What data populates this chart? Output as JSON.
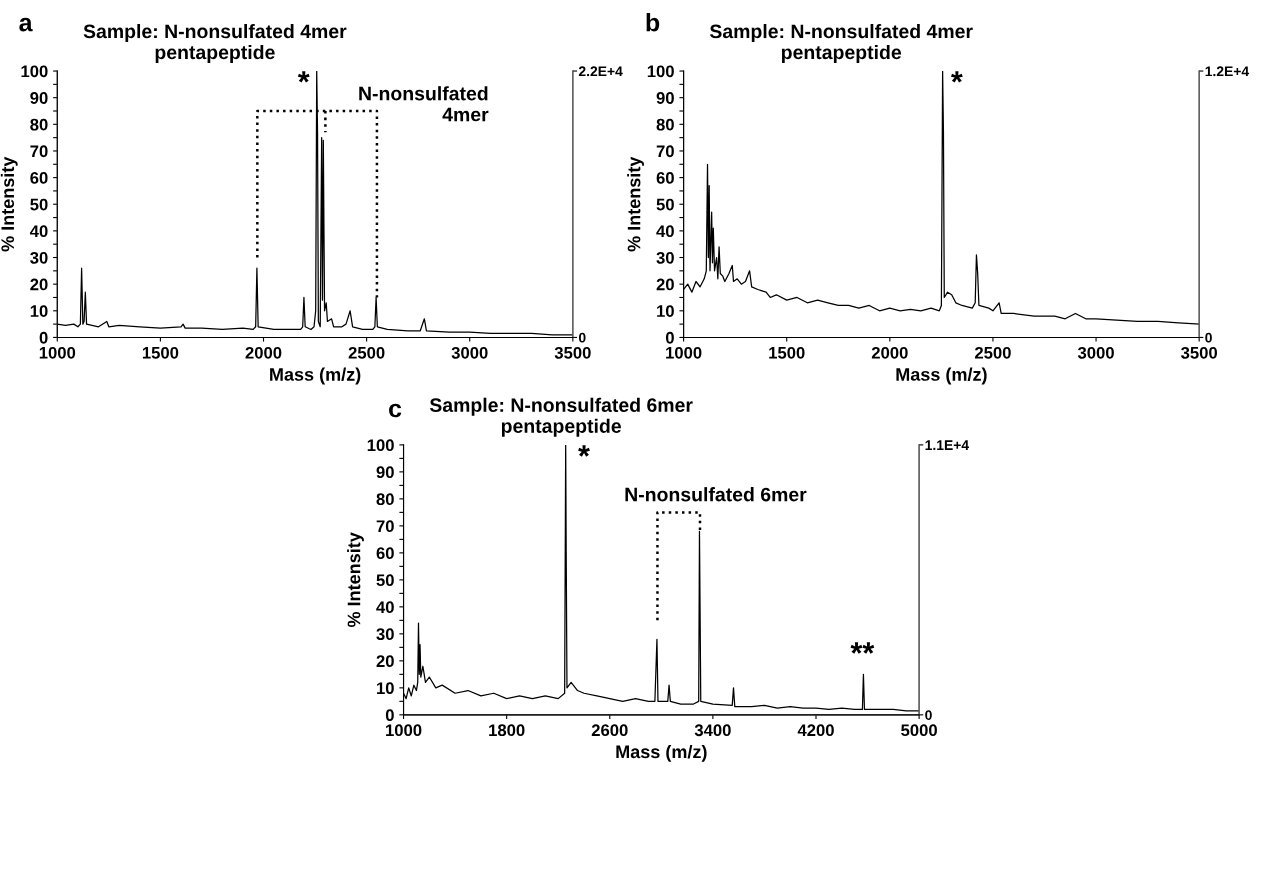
{
  "chart_data": [
    {
      "type": "line",
      "title": "a",
      "subtitle": "Sample: N-nonsulfated 4mer\npentapeptide",
      "xlabel": "Mass (m/z)",
      "ylabel": "% Intensity",
      "xlim": [
        1000,
        3500
      ],
      "xticks": [
        1000,
        1500,
        2000,
        2500,
        3000,
        3500
      ],
      "ylim": [
        0,
        100
      ],
      "yticks": [
        0,
        {
          "value": 5,
          "label": null
        },
        10,
        {
          "value": 15,
          "label": null
        },
        20,
        {
          "value": 25,
          "label": null
        },
        30,
        {
          "value": 35,
          "label": null
        },
        40,
        {
          "value": 45,
          "label": null
        },
        50,
        {
          "value": 55,
          "label": null
        },
        60,
        {
          "value": 65,
          "label": null
        },
        70,
        {
          "value": 75,
          "label": null
        },
        80,
        {
          "value": 85,
          "label": null
        },
        90,
        {
          "value": 95,
          "label": null
        },
        100
      ],
      "y2lim": [
        0,
        22000
      ],
      "y2ticks": [
        0,
        {
          "value": 22000,
          "label": "2.2E+4"
        }
      ],
      "marker": "none",
      "grid": false,
      "series": [
        {
          "color": "#000000",
          "line_style": "solid",
          "x": [
            1000,
            1040,
            1080,
            1100,
            1112,
            1118,
            1124,
            1130,
            1136,
            1142,
            1200,
            1240,
            1250,
            1300,
            1400,
            1500,
            1600,
            1610,
            1620,
            1700,
            1800,
            1900,
            1950,
            1962,
            1968,
            1974,
            2050,
            2100,
            2150,
            2180,
            2190,
            2196,
            2202,
            2230,
            2245,
            2253,
            2258,
            2262,
            2266,
            2275,
            2282,
            2286,
            2290,
            2296,
            2304,
            2310,
            2330,
            2340,
            2380,
            2400,
            2420,
            2426,
            2432,
            2480,
            2530,
            2540,
            2546,
            2552,
            2600,
            2700,
            2760,
            2780,
            2790,
            2900,
            3000,
            3100,
            3200,
            3300,
            3400,
            3500
          ],
          "values": [
            5,
            4.5,
            5,
            4,
            5,
            26,
            5,
            6,
            17,
            5,
            4,
            6,
            4,
            4.5,
            4,
            3.5,
            4,
            5,
            3.5,
            3.5,
            3,
            3.5,
            3,
            4,
            26,
            4,
            3,
            3,
            3,
            3,
            4,
            15,
            4,
            3,
            4,
            10,
            100,
            77,
            6,
            4,
            75,
            14,
            74,
            10,
            13,
            6,
            7,
            4,
            4,
            5,
            10,
            7,
            4,
            3,
            3,
            4,
            15,
            4,
            3,
            2.5,
            2.5,
            7,
            2.5,
            2,
            2,
            1.5,
            1.5,
            1.5,
            1,
            1
          ]
        },
        {
          "color": "#000000",
          "line_style": "dotted",
          "x": [
            1970,
            1970,
            2550,
            2550,
            null,
            2300,
            2300
          ],
          "values": [
            30,
            85,
            85,
            15,
            null,
            85,
            77
          ]
        }
      ],
      "annotations": [
        "*",
        "N-nonsulfated\n4mer"
      ]
    },
    {
      "type": "line",
      "title": "b",
      "subtitle": "Sample: N-nonsulfated 4mer\npentapeptide",
      "xlabel": "Mass (m/z)",
      "ylabel": "% Intensity",
      "xlim": [
        1000,
        3500
      ],
      "xticks": [
        1000,
        1500,
        2000,
        2500,
        3000,
        3500
      ],
      "ylim": [
        0,
        100
      ],
      "yticks": [
        0,
        {
          "value": 5,
          "label": null
        },
        10,
        {
          "value": 15,
          "label": null
        },
        20,
        {
          "value": 25,
          "label": null
        },
        30,
        {
          "value": 35,
          "label": null
        },
        40,
        {
          "value": 45,
          "label": null
        },
        50,
        {
          "value": 55,
          "label": null
        },
        60,
        {
          "value": 65,
          "label": null
        },
        70,
        {
          "value": 75,
          "label": null
        },
        80,
        {
          "value": 85,
          "label": null
        },
        90,
        {
          "value": 95,
          "label": null
        },
        100
      ],
      "y2lim": [
        0,
        12000
      ],
      "y2ticks": [
        0,
        {
          "value": 12000,
          "label": "1.2E+4"
        }
      ],
      "marker": "none",
      "grid": false,
      "series": [
        {
          "color": "#000000",
          "line_style": "solid",
          "x": [
            1000,
            1020,
            1040,
            1060,
            1080,
            1100,
            1110,
            1116,
            1120,
            1124,
            1128,
            1136,
            1140,
            1144,
            1150,
            1160,
            1166,
            1172,
            1178,
            1190,
            1200,
            1220,
            1236,
            1242,
            1260,
            1280,
            1300,
            1320,
            1330,
            1360,
            1400,
            1420,
            1450,
            1500,
            1550,
            1600,
            1650,
            1700,
            1750,
            1800,
            1850,
            1900,
            1950,
            2000,
            2050,
            2100,
            2150,
            2200,
            2240,
            2250,
            2256,
            2260,
            2264,
            2280,
            2300,
            2320,
            2350,
            2400,
            2414,
            2420,
            2426,
            2432,
            2480,
            2500,
            2530,
            2540,
            2600,
            2700,
            2800,
            2850,
            2900,
            2950,
            3000,
            3100,
            3200,
            3300,
            3400,
            3500
          ],
          "values": [
            18,
            20,
            17,
            21,
            19,
            22,
            25,
            65,
            30,
            57,
            25,
            47,
            28,
            41,
            25,
            30,
            22,
            34,
            24,
            23,
            21,
            24,
            27,
            21,
            22,
            20,
            21,
            25,
            19,
            18,
            17,
            15,
            16,
            14,
            15,
            13,
            14,
            13,
            12,
            12,
            11,
            12,
            10,
            11,
            10,
            10.5,
            10,
            11,
            10,
            12,
            100,
            77,
            15,
            17,
            16,
            13,
            12,
            11,
            13,
            31,
            24,
            12,
            11,
            10,
            13,
            9,
            9,
            8,
            8,
            7,
            9,
            7,
            7,
            6.5,
            6,
            6,
            5.5,
            5
          ]
        }
      ],
      "annotations": [
        "*"
      ]
    },
    {
      "type": "line",
      "title": "c",
      "subtitle": "Sample: N-nonsulfated 6mer\npentapeptide",
      "xlabel": "Mass (m/z)",
      "ylabel": "% Intensity",
      "xlim": [
        1000,
        5000
      ],
      "xticks": [
        1000,
        1800,
        2600,
        3400,
        4200,
        5000
      ],
      "ylim": [
        0,
        100
      ],
      "yticks": [
        0,
        {
          "value": 5,
          "label": null
        },
        10,
        {
          "value": 15,
          "label": null
        },
        20,
        {
          "value": 25,
          "label": null
        },
        30,
        {
          "value": 35,
          "label": null
        },
        40,
        {
          "value": 45,
          "label": null
        },
        50,
        {
          "value": 55,
          "label": null
        },
        60,
        {
          "value": 65,
          "label": null
        },
        70,
        {
          "value": 75,
          "label": null
        },
        80,
        {
          "value": 85,
          "label": null
        },
        90,
        {
          "value": 95,
          "label": null
        },
        100
      ],
      "y2lim": [
        0,
        11000
      ],
      "y2ticks": [
        0,
        {
          "value": 11000,
          "label": "1.1E+4"
        }
      ],
      "marker": "none",
      "grid": false,
      "series": [
        {
          "color": "#000000",
          "line_style": "solid",
          "x": [
            1000,
            1020,
            1040,
            1060,
            1080,
            1100,
            1110,
            1116,
            1122,
            1128,
            1134,
            1150,
            1170,
            1200,
            1250,
            1300,
            1400,
            1500,
            1600,
            1700,
            1800,
            1900,
            2000,
            2100,
            2200,
            2250,
            2258,
            2262,
            2268,
            2300,
            2350,
            2400,
            2500,
            2600,
            2700,
            2800,
            2900,
            2950,
            2966,
            2974,
            3050,
            3060,
            3070,
            3150,
            3250,
            3290,
            3296,
            3300,
            3306,
            3400,
            3550,
            3560,
            3570,
            3700,
            3800,
            3900,
            4000,
            4100,
            4200,
            4300,
            4400,
            4500,
            4560,
            4568,
            4576,
            4700,
            4800,
            4900,
            5000
          ],
          "values": [
            8,
            6,
            10,
            7,
            11,
            9,
            12,
            34,
            15,
            26,
            14,
            18,
            12,
            14,
            10,
            11,
            8,
            9,
            7,
            8,
            6,
            7,
            6,
            7,
            6,
            8,
            100,
            60,
            10,
            12,
            9,
            8,
            7,
            6,
            5,
            6,
            5,
            5,
            28,
            5,
            5,
            11,
            5,
            4,
            4,
            5,
            68,
            43,
            5,
            4,
            3.5,
            10,
            3,
            3,
            3.5,
            2.5,
            3,
            2.5,
            2.5,
            2,
            2.5,
            2,
            2,
            15,
            2,
            2,
            2,
            1.5,
            1.5
          ]
        },
        {
          "color": "#000000",
          "line_style": "dotted",
          "x": [
            2970,
            2970,
            3300,
            3300
          ],
          "values": [
            35,
            75,
            75,
            67
          ]
        }
      ],
      "annotations": [
        "*",
        "N-nonsulfated 6mer",
        "**"
      ]
    }
  ]
}
